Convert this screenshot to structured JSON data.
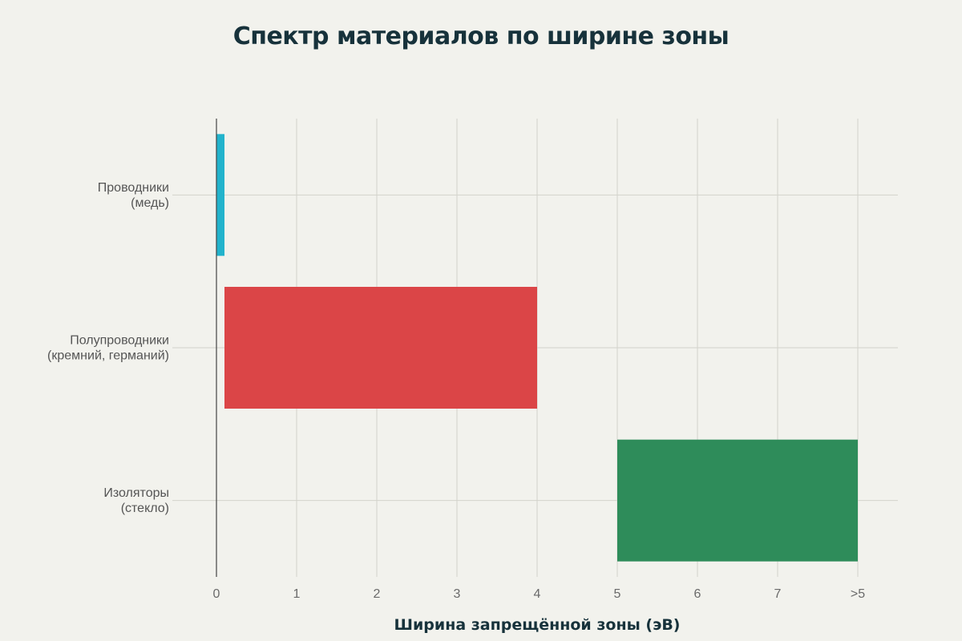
{
  "chart_data": {
    "type": "bar",
    "orientation": "horizontal",
    "title": "Спектр материалов по ширине зоны",
    "xlabel": "Ширина запрещённой зоны (эВ)",
    "ylabel": "",
    "xlim": [
      0,
      8.5
    ],
    "x_ticks": [
      {
        "value": 0,
        "label": "0"
      },
      {
        "value": 1,
        "label": "1"
      },
      {
        "value": 2,
        "label": "2"
      },
      {
        "value": 3,
        "label": "3"
      },
      {
        "value": 4,
        "label": "4"
      },
      {
        "value": 5,
        "label": "5"
      },
      {
        "value": 6,
        "label": "6"
      },
      {
        "value": 7,
        "label": "7"
      },
      {
        "value": 8,
        "label": ">5"
      }
    ],
    "grid": true,
    "bars": [
      {
        "id": "conductors",
        "label_lines": [
          "Проводники",
          "(медь)"
        ],
        "start": 0,
        "end": 0.1,
        "color": "#22b3cc"
      },
      {
        "id": "semiconductors",
        "label_lines": [
          "Полупроводники",
          "(кремний, германий)"
        ],
        "start": 0.1,
        "end": 4,
        "color": "#db4547"
      },
      {
        "id": "insulators",
        "label_lines": [
          "Изоляторы",
          "(стекло)"
        ],
        "start": 5,
        "end": 8,
        "color": "#2e8c5a"
      }
    ]
  }
}
